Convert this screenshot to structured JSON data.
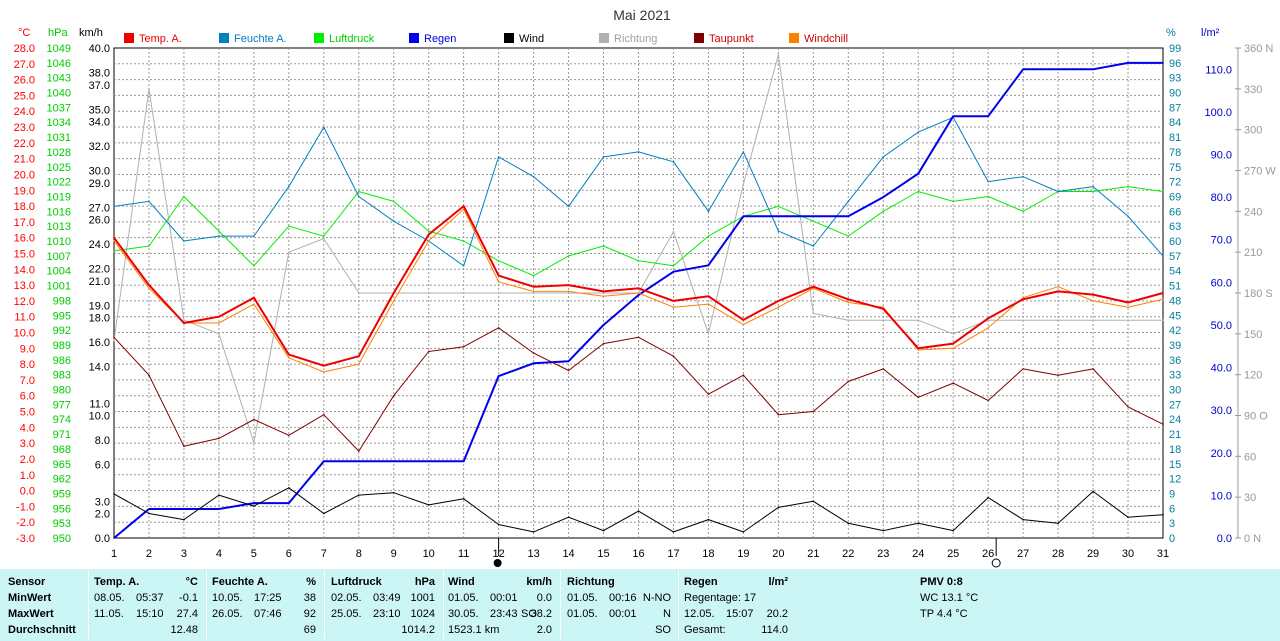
{
  "chart_data": {
    "type": "line",
    "title": "Mai 2021",
    "days": [
      1,
      2,
      3,
      4,
      5,
      6,
      7,
      8,
      9,
      10,
      11,
      12,
      13,
      14,
      15,
      16,
      17,
      18,
      19,
      20,
      21,
      22,
      23,
      24,
      25,
      26,
      27,
      28,
      29,
      30,
      31
    ],
    "axes_left": {
      "temp": {
        "unit": "°C",
        "color": "#ff0000",
        "min": -3.0,
        "max": 28.0,
        "step": 1.0
      },
      "pressure": {
        "unit": "hPa",
        "color": "#00cc00",
        "min": 950,
        "max": 1049,
        "step": 3
      },
      "wind": {
        "unit": "km/h",
        "color": "#000000",
        "ticks": [
          0.0,
          2.0,
          3.0,
          6.0,
          8.0,
          10.0,
          11.0,
          14.0,
          16.0,
          18.0,
          19.0,
          21.0,
          22.0,
          24.0,
          26.0,
          27.0,
          29.0,
          30.0,
          32.0,
          34.0,
          35.0,
          37.0,
          38.0,
          40.0
        ],
        "max": 40.0
      }
    },
    "axes_right": {
      "humidity": {
        "unit": "%",
        "color": "#0080a0",
        "min": 0,
        "max": 99,
        "step": 3
      },
      "rain": {
        "unit": "l/m²",
        "color": "#0000cc",
        "ticks": [
          0.0,
          10.0,
          20.0,
          30.0,
          40.0,
          50.0,
          60.0,
          70.0,
          80.0,
          90.0,
          100.0,
          110.0
        ],
        "max": 115
      },
      "direction": {
        "unit": "",
        "color": "#999999",
        "ticks": [
          {
            "v": 0,
            "l": "0 N"
          },
          {
            "v": 30,
            "l": "30"
          },
          {
            "v": 60,
            "l": "60"
          },
          {
            "v": 90,
            "l": "90 O"
          },
          {
            "v": 120,
            "l": "120"
          },
          {
            "v": 150,
            "l": "150"
          },
          {
            "v": 180,
            "l": "180 S"
          },
          {
            "v": 210,
            "l": "210"
          },
          {
            "v": 240,
            "l": "240"
          },
          {
            "v": 270,
            "l": "270 W"
          },
          {
            "v": 300,
            "l": "300"
          },
          {
            "v": 330,
            "l": "330"
          },
          {
            "v": 360,
            "l": "360 N"
          }
        ]
      }
    },
    "series": [
      {
        "key": "richtung",
        "name": "Richtung",
        "color": "#b0b0b0",
        "width": 1,
        "axis": "direction",
        "values": [
          145,
          330,
          160,
          150,
          70,
          210,
          220,
          180,
          180,
          180,
          180,
          180,
          180,
          180,
          180,
          180,
          225,
          150,
          260,
          355,
          165,
          160,
          160,
          160,
          150,
          160,
          160,
          160,
          160,
          160,
          160
        ]
      },
      {
        "key": "luftdruck",
        "name": "Luftdruck",
        "color": "#00ee00",
        "width": 1,
        "axis": "pressure",
        "values": [
          1008,
          1009,
          1019,
          1012,
          1005,
          1013,
          1011,
          1020,
          1018,
          1012,
          1010,
          1006,
          1003,
          1007,
          1009,
          1006,
          1005,
          1011,
          1015,
          1017,
          1014,
          1011,
          1016,
          1020,
          1018,
          1019,
          1016,
          1020,
          1020,
          1021,
          1020
        ]
      },
      {
        "key": "feuchte",
        "name": "Feuchte A.",
        "color": "#0080c0",
        "width": 1,
        "axis": "humidity",
        "values": [
          67,
          68,
          60,
          61,
          61,
          71,
          83,
          69,
          64,
          60,
          55,
          77,
          73,
          67,
          77,
          78,
          76,
          66,
          78,
          62,
          59,
          68,
          77,
          82,
          85,
          72,
          73,
          70,
          71,
          65,
          57
        ]
      },
      {
        "key": "regen",
        "name": "Regen",
        "color": "#0000ee",
        "width": 2,
        "axis": "rain",
        "values": [
          0.0,
          6.8,
          6.8,
          6.8,
          8.2,
          8.2,
          18.0,
          18.0,
          18.0,
          18.0,
          18.0,
          38.0,
          41.0,
          41.5,
          50.0,
          57.0,
          62.5,
          64.0,
          75.5,
          75.5,
          75.5,
          75.5,
          80.0,
          85.5,
          99.0,
          99.0,
          110.0,
          110.0,
          110.0,
          111.5,
          111.5
        ]
      },
      {
        "key": "taupunkt",
        "name": "Taupunkt",
        "color": "#800000",
        "width": 1,
        "axis": "temp",
        "values": [
          9.7,
          7.3,
          2.8,
          3.3,
          4.5,
          3.5,
          4.8,
          2.5,
          6.0,
          8.8,
          9.1,
          10.3,
          8.7,
          7.6,
          9.3,
          9.7,
          8.5,
          6.1,
          7.3,
          4.8,
          5.0,
          6.9,
          7.7,
          5.9,
          6.8,
          5.7,
          7.7,
          7.3,
          7.7,
          5.3,
          4.2
        ]
      },
      {
        "key": "wind",
        "name": "Wind",
        "color": "#000000",
        "width": 1,
        "axis": "wind",
        "values": [
          3.6,
          2.0,
          1.5,
          3.5,
          2.6,
          4.1,
          2.0,
          3.5,
          3.7,
          2.7,
          3.2,
          1.1,
          0.5,
          1.7,
          0.6,
          2.2,
          0.5,
          1.5,
          0.5,
          2.5,
          3.0,
          1.2,
          0.6,
          1.2,
          0.6,
          3.3,
          1.5,
          1.2,
          3.8,
          1.7,
          1.9
        ]
      },
      {
        "key": "windchill",
        "name": "Windchill",
        "color": "#ff8000",
        "width": 1,
        "axis": "temp",
        "values": [
          15.8,
          12.8,
          10.6,
          10.6,
          11.8,
          8.4,
          7.5,
          8.0,
          12.0,
          15.8,
          17.8,
          13.2,
          12.6,
          12.6,
          12.3,
          12.5,
          11.6,
          11.8,
          10.5,
          11.6,
          12.8,
          11.9,
          11.6,
          8.9,
          9.0,
          10.3,
          12.2,
          12.9,
          12.0,
          11.6,
          12.1
        ]
      },
      {
        "key": "temp",
        "name": "Temp. A.",
        "color": "#ee0000",
        "width": 2,
        "axis": "temp",
        "values": [
          16.0,
          13.0,
          10.6,
          11.0,
          12.2,
          8.6,
          7.9,
          8.5,
          12.5,
          16.2,
          18.0,
          13.6,
          12.9,
          13.0,
          12.6,
          12.8,
          12.0,
          12.3,
          10.8,
          12.0,
          12.9,
          12.1,
          11.5,
          9.0,
          9.3,
          10.9,
          12.1,
          12.6,
          12.4,
          11.9,
          12.5
        ]
      }
    ],
    "legend": [
      {
        "name": "Temp. A.",
        "color": "#ee0000",
        "text_color": "#ee0000"
      },
      {
        "name": "Feuchte A.",
        "color": "#0080c0",
        "text_color": "#0080c0"
      },
      {
        "name": "Luftdruck",
        "color": "#00ee00",
        "text_color": "#00cc00"
      },
      {
        "name": "Regen",
        "color": "#0000ee",
        "text_color": "#0000ee"
      },
      {
        "name": "Wind",
        "color": "#000000",
        "text_color": "#000000"
      },
      {
        "name": "Richtung",
        "color": "#b0b0b0",
        "text_color": "#a0a0a0"
      },
      {
        "name": "Taupunkt",
        "color": "#800000",
        "text_color": "#cc0000"
      },
      {
        "name": "Windchill",
        "color": "#ff8000",
        "text_color": "#cc0000"
      }
    ],
    "grid": true,
    "marker_full_moon_day": 12,
    "marker_new_moon_day": 26
  },
  "footer": {
    "sensor": {
      "header": "Sensor",
      "rows": [
        "MinWert",
        "MaxWert",
        "Durchschnitt"
      ]
    },
    "temp": {
      "header": "Temp. A.",
      "unit": "°C",
      "min": {
        "date": "08.05.",
        "time": "05:37",
        "value": "-0.1"
      },
      "max": {
        "date": "11.05.",
        "time": "15:10",
        "value": "27.4"
      },
      "avg": "12.48"
    },
    "humidity": {
      "header": "Feuchte A.",
      "unit": "%",
      "min": {
        "date": "10.05.",
        "time": "17:25",
        "value": "38"
      },
      "max": {
        "date": "26.05.",
        "time": "07:46",
        "value": "92"
      },
      "avg": "69"
    },
    "pressure": {
      "header": "Luftdruck",
      "unit": "hPa",
      "min": {
        "date": "02.05.",
        "time": "03:49",
        "value": "1001"
      },
      "max": {
        "date": "25.05.",
        "time": "23:10",
        "value": "1024"
      },
      "avg": "1014.2"
    },
    "wind": {
      "header": "Wind",
      "unit": "km/h",
      "min": {
        "date": "01.05.",
        "time": "00:01",
        "value": "0.0"
      },
      "max": {
        "date": "30.05.",
        "time": "23:43",
        "dir": "SO",
        "value": "38.2"
      },
      "avg_total": "1523.1 km",
      "avg": "2.0"
    },
    "direction": {
      "header": "Richtung",
      "min": {
        "date": "01.05.",
        "time": "00:16",
        "value": "N-NO"
      },
      "max": {
        "date": "01.05.",
        "time": "00:01",
        "value": "N"
      },
      "avg": "SO"
    },
    "rain": {
      "header": "Regen",
      "unit": "l/m²",
      "row1": "Regentage: 17",
      "row2_date": "12.05.",
      "row2_time": "15:07",
      "row2_value": "20.2",
      "row3_label": "Gesamt:",
      "row3_value": "114.0"
    },
    "pmv": {
      "header": "PMV 0:8",
      "wc": "WC 13.1 °C",
      "tp": "TP 4.4 °C"
    }
  }
}
